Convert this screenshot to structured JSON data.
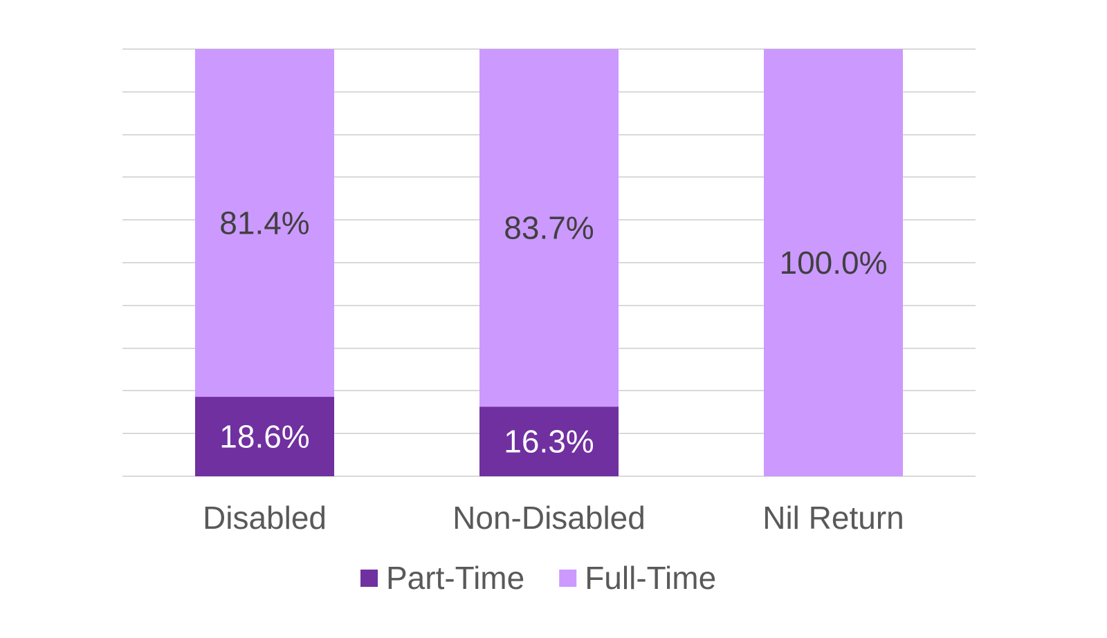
{
  "chart_data": {
    "type": "bar",
    "stacked": true,
    "percent_stacked": true,
    "categories": [
      "Disabled",
      "Non-Disabled",
      "Nil Return"
    ],
    "series": [
      {
        "name": "Part-Time",
        "values": [
          18.6,
          16.3,
          0
        ],
        "labels": [
          "18.6%",
          "16.3%",
          ""
        ],
        "color": "#7030a0"
      },
      {
        "name": "Full-Time",
        "values": [
          81.4,
          83.7,
          100.0
        ],
        "labels": [
          "81.4%",
          "83.7%",
          "100.0%"
        ],
        "color": "#cc99ff"
      }
    ],
    "ylim": [
      0,
      100
    ],
    "grid": true,
    "legend": "bottom",
    "title": "",
    "xlabel": "",
    "ylabel": ""
  }
}
